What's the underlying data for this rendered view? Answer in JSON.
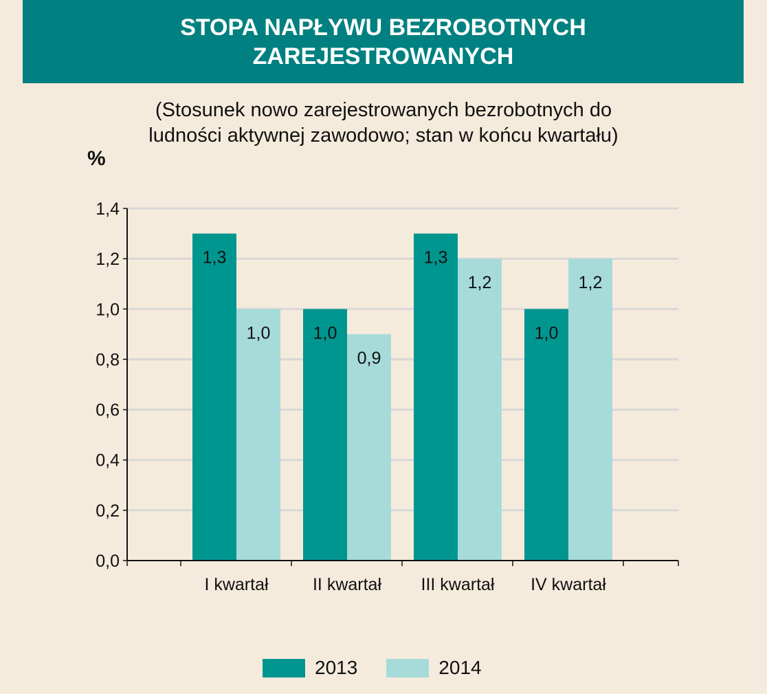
{
  "header": {
    "title_line1": "STOPA NAPŁYWU BEZROBOTNYCH",
    "title_line2": "ZAREJESTROWANYCH"
  },
  "subtitle_line1": "(Stosunek nowo zarejestrowanych bezrobotnych do",
  "subtitle_line2": "ludności aktywnej zawodowo; stan w końcu kwartału)",
  "unit": "%",
  "colors": {
    "header_bg": "#008080",
    "background": "#f5ebdc",
    "series_2013": "#009690",
    "series_2014": "#a6dbda",
    "grid": "#d8d8d8"
  },
  "chart_data": {
    "type": "bar",
    "title": "STOPA NAPŁYWU BEZROBOTNYCH ZAREJESTROWANYCH",
    "subtitle": "(Stosunek nowo zarejestrowanych bezrobotnych do ludności aktywnej zawodowo; stan w końcu kwartału)",
    "ylabel": "%",
    "xlabel": "",
    "ylim": [
      0,
      1.4
    ],
    "yticks": [
      "0,0",
      "0,2",
      "0,4",
      "0,6",
      "0,8",
      "1,0",
      "1,2",
      "1,4"
    ],
    "grid": true,
    "legend_position": "bottom",
    "categories": [
      "I kwartał",
      "II kwartał",
      "III kwartał",
      "IV kwartał"
    ],
    "series": [
      {
        "name": "2013",
        "values": [
          1.3,
          1.0,
          1.3,
          1.0
        ],
        "labels": [
          "1,3",
          "1,0",
          "1,3",
          "1,0"
        ]
      },
      {
        "name": "2014",
        "values": [
          1.0,
          0.9,
          1.2,
          1.2
        ],
        "labels": [
          "1,0",
          "0,9",
          "1,2",
          "1,2"
        ]
      }
    ]
  }
}
